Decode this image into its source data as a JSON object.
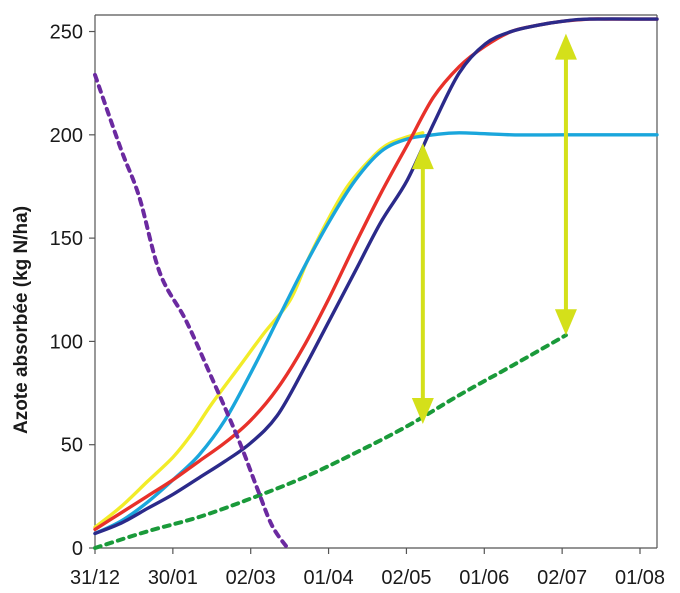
{
  "chart_data": {
    "type": "line",
    "title": "",
    "xlabel": "",
    "ylabel": "Azote absorbée (kg N/ha)",
    "x_tick_labels": [
      "31/12",
      "30/01",
      "02/03",
      "01/04",
      "02/05",
      "01/06",
      "02/07",
      "01/08"
    ],
    "y_ticks": [
      0,
      50,
      100,
      150,
      200,
      250
    ],
    "ylim": [
      0,
      258
    ],
    "xlim": [
      0,
      216
    ],
    "grid": false,
    "legend": "none",
    "series": [
      {
        "color": "#f2ec28",
        "style": "solid",
        "points": [
          [
            0,
            10
          ],
          [
            10,
            20
          ],
          [
            20,
            32
          ],
          [
            30,
            44
          ],
          [
            37,
            55
          ],
          [
            45,
            70
          ],
          [
            55,
            87
          ],
          [
            65,
            104
          ],
          [
            75,
            120
          ],
          [
            82,
            140
          ],
          [
            90,
            160
          ],
          [
            97,
            175
          ],
          [
            105,
            187
          ],
          [
            112,
            195
          ],
          [
            120,
            199
          ],
          [
            126,
            201
          ]
        ]
      },
      {
        "color": "#1aa6dc",
        "style": "solid",
        "points": [
          [
            0,
            7
          ],
          [
            10,
            13
          ],
          [
            20,
            22
          ],
          [
            30,
            33
          ],
          [
            40,
            45
          ],
          [
            50,
            62
          ],
          [
            60,
            85
          ],
          [
            70,
            110
          ],
          [
            80,
            135
          ],
          [
            90,
            158
          ],
          [
            100,
            178
          ],
          [
            110,
            192
          ],
          [
            120,
            198
          ],
          [
            130,
            200
          ],
          [
            140,
            201
          ],
          [
            160,
            200
          ],
          [
            180,
            200
          ],
          [
            200,
            200
          ],
          [
            216,
            200
          ]
        ]
      },
      {
        "color": "#e8312a",
        "style": "solid",
        "points": [
          [
            0,
            9
          ],
          [
            10,
            17
          ],
          [
            20,
            25
          ],
          [
            30,
            33
          ],
          [
            40,
            42
          ],
          [
            50,
            51
          ],
          [
            60,
            62
          ],
          [
            70,
            77
          ],
          [
            80,
            97
          ],
          [
            90,
            121
          ],
          [
            100,
            147
          ],
          [
            110,
            172
          ],
          [
            120,
            195
          ],
          [
            130,
            218
          ],
          [
            140,
            233
          ],
          [
            150,
            243
          ],
          [
            160,
            250
          ],
          [
            170,
            253
          ],
          [
            180,
            255
          ],
          [
            190,
            256
          ],
          [
            200,
            256
          ],
          [
            216,
            256
          ]
        ]
      },
      {
        "color": "#2b2a8a",
        "style": "solid",
        "points": [
          [
            0,
            7
          ],
          [
            10,
            12
          ],
          [
            20,
            19
          ],
          [
            30,
            26
          ],
          [
            40,
            34
          ],
          [
            50,
            42
          ],
          [
            60,
            51
          ],
          [
            70,
            64
          ],
          [
            80,
            86
          ],
          [
            90,
            110
          ],
          [
            100,
            134
          ],
          [
            110,
            158
          ],
          [
            120,
            178
          ],
          [
            130,
            205
          ],
          [
            140,
            230
          ],
          [
            150,
            244
          ],
          [
            160,
            250
          ],
          [
            170,
            253
          ],
          [
            180,
            255
          ],
          [
            190,
            256
          ],
          [
            216,
            256
          ]
        ]
      },
      {
        "color": "#1a9a3a",
        "style": "dashed",
        "points": [
          [
            0,
            0
          ],
          [
            20,
            8
          ],
          [
            40,
            15
          ],
          [
            60,
            24
          ],
          [
            80,
            34
          ],
          [
            100,
            46
          ],
          [
            120,
            59
          ],
          [
            140,
            74
          ],
          [
            160,
            88
          ],
          [
            181,
            103
          ]
        ]
      },
      {
        "color": "#6b2aa0",
        "style": "dashed",
        "points": [
          [
            0,
            229
          ],
          [
            10,
            193
          ],
          [
            17,
            170
          ],
          [
            25,
            133
          ],
          [
            35,
            110
          ],
          [
            45,
            82
          ],
          [
            55,
            53
          ],
          [
            62,
            30
          ],
          [
            68,
            11
          ],
          [
            74,
            0
          ]
        ]
      }
    ],
    "arrows": [
      {
        "color": "#d4e01a",
        "x": 126,
        "y_from": 60,
        "y_to": 196
      },
      {
        "color": "#d4e01a",
        "x": 181,
        "y_from": 103,
        "y_to": 249
      }
    ]
  }
}
